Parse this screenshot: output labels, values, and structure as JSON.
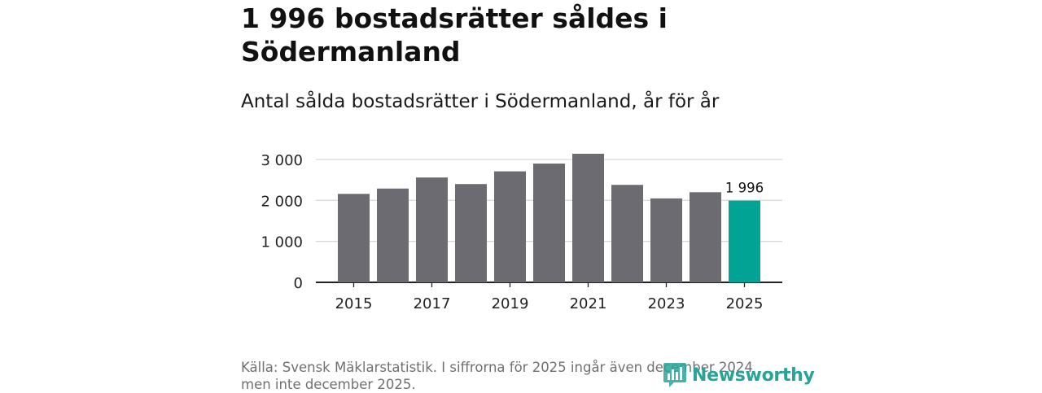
{
  "header": {
    "title": "1 996 bostadsrätter såldes i Södermanland",
    "subtitle": "Antal sålda bostadsrätter i Södermanland, år för år"
  },
  "colors": {
    "bar": "#6c6b71",
    "highlight": "#00a394",
    "grid": "#d9d9d9",
    "axis": "#222222",
    "brand": "#28a39a"
  },
  "chart_data": {
    "type": "bar",
    "categories": [
      "2015",
      "2016",
      "2017",
      "2018",
      "2019",
      "2020",
      "2021",
      "2022",
      "2023",
      "2024",
      "2025"
    ],
    "values": [
      2160,
      2290,
      2560,
      2400,
      2710,
      2900,
      3140,
      2380,
      2050,
      2200,
      1996
    ],
    "highlight_index": 10,
    "data_label": "1 996",
    "x_tick_labels": [
      "2015",
      "2017",
      "2019",
      "2021",
      "2023",
      "2025"
    ],
    "y_ticks": [
      0,
      1000,
      2000,
      3000
    ],
    "y_tick_labels": [
      "0",
      "1 000",
      "2 000",
      "3 000"
    ],
    "ylim": [
      0,
      3000
    ],
    "grid": true,
    "title": "Antal sålda bostadsrätter i Södermanland, år för år",
    "xlabel": "",
    "ylabel": ""
  },
  "footer": {
    "source_line1": "Källa: Svensk Mäklarstatistik. I siffrorna för 2025 ingår även december 2024",
    "source_line2": "men inte december 2025.",
    "brand": "Newsworthy",
    "brand_icon": "newsworthy-logo-icon"
  }
}
